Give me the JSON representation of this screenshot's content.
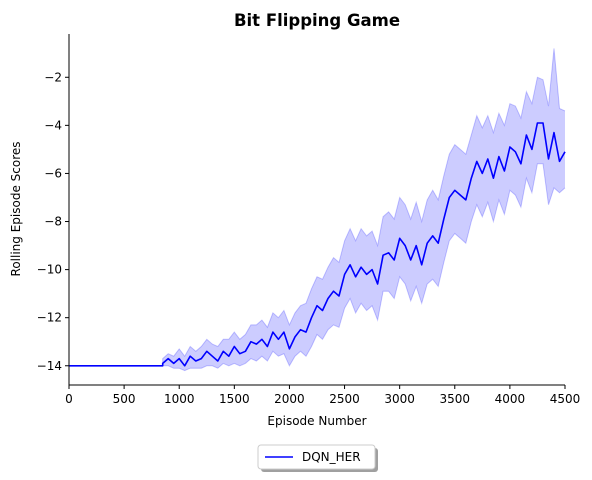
{
  "chart_data": {
    "type": "line",
    "title": "Bit Flipping Game",
    "xlabel": "Episode Number",
    "ylabel": "Rolling Episode Scores",
    "xlim": [
      0,
      4500
    ],
    "ylim": [
      -14.8,
      -0.2
    ],
    "xticks": [
      0,
      500,
      1000,
      1500,
      2000,
      2500,
      3000,
      3500,
      4000,
      4500
    ],
    "yticks": [
      -14,
      -12,
      -10,
      -8,
      -6,
      -4,
      -2
    ],
    "ytick_labels": [
      "−14",
      "−12",
      "−10",
      "−8",
      "−6",
      "−4",
      "−2"
    ],
    "grid": false,
    "legend_position": "below-center",
    "series": [
      {
        "name": "DQN_HER",
        "color": "#0000ff",
        "band_color": "#0000ff",
        "band_opacity": 0.2,
        "x": [
          0,
          850,
          850,
          900,
          950,
          1000,
          1050,
          1100,
          1150,
          1200,
          1250,
          1300,
          1350,
          1400,
          1450,
          1500,
          1550,
          1600,
          1650,
          1700,
          1750,
          1800,
          1850,
          1900,
          1950,
          2000,
          2050,
          2100,
          2150,
          2200,
          2250,
          2300,
          2350,
          2400,
          2450,
          2500,
          2550,
          2600,
          2650,
          2700,
          2750,
          2800,
          2850,
          2900,
          2950,
          3000,
          3050,
          3100,
          3150,
          3200,
          3250,
          3300,
          3350,
          3400,
          3450,
          3500,
          3550,
          3600,
          3650,
          3700,
          3750,
          3800,
          3850,
          3900,
          3950,
          4000,
          4050,
          4100,
          4150,
          4200,
          4250,
          4300,
          4350,
          4400,
          4450,
          4500
        ],
        "mean": [
          -14,
          -14,
          -13.9,
          -13.7,
          -13.9,
          -13.7,
          -14.0,
          -13.6,
          -13.8,
          -13.7,
          -13.4,
          -13.6,
          -13.8,
          -13.4,
          -13.6,
          -13.2,
          -13.5,
          -13.4,
          -13.0,
          -13.1,
          -12.9,
          -13.2,
          -12.6,
          -12.9,
          -12.6,
          -13.3,
          -12.8,
          -12.5,
          -12.6,
          -12.0,
          -11.5,
          -11.7,
          -11.2,
          -10.9,
          -11.1,
          -10.2,
          -9.8,
          -10.3,
          -9.9,
          -10.2,
          -10.0,
          -10.6,
          -9.4,
          -9.3,
          -9.6,
          -8.7,
          -9.0,
          -9.6,
          -9.0,
          -9.8,
          -8.9,
          -8.6,
          -8.9,
          -7.9,
          -7.0,
          -6.7,
          -6.9,
          -7.1,
          -6.2,
          -5.5,
          -6.0,
          -5.4,
          -6.2,
          -5.3,
          -5.9,
          -4.9,
          -5.1,
          -5.6,
          -4.4,
          -5.0,
          -3.9,
          -3.9,
          -5.4,
          -4.3,
          -5.5,
          -5.1
        ],
        "upper": [
          -14,
          -14,
          -13.7,
          -13.5,
          -13.6,
          -13.3,
          -13.6,
          -13.2,
          -13.4,
          -13.2,
          -12.9,
          -13.1,
          -13.2,
          -12.9,
          -12.9,
          -12.6,
          -12.9,
          -12.7,
          -12.3,
          -12.3,
          -12.1,
          -12.4,
          -11.8,
          -12.0,
          -11.7,
          -12.3,
          -11.8,
          -11.5,
          -11.4,
          -10.8,
          -10.3,
          -10.4,
          -9.9,
          -9.5,
          -9.7,
          -8.8,
          -8.3,
          -8.8,
          -8.3,
          -8.6,
          -8.4,
          -9.0,
          -7.8,
          -7.6,
          -7.9,
          -7.0,
          -7.3,
          -7.9,
          -7.2,
          -8.0,
          -7.1,
          -6.7,
          -7.1,
          -6.1,
          -5.2,
          -4.8,
          -5.0,
          -5.2,
          -4.4,
          -3.6,
          -4.1,
          -3.6,
          -4.3,
          -3.5,
          -4.0,
          -3.1,
          -3.2,
          -3.7,
          -2.6,
          -3.1,
          -2.0,
          -2.1,
          -3.2,
          -0.8,
          -3.3,
          -3.4
        ],
        "lower": [
          -14,
          -14,
          -14.0,
          -14.0,
          -14.1,
          -14.1,
          -14.2,
          -14.1,
          -14.1,
          -14.1,
          -14.0,
          -14.0,
          -14.1,
          -13.9,
          -14.0,
          -13.9,
          -14.0,
          -13.9,
          -13.7,
          -13.8,
          -13.6,
          -13.8,
          -13.4,
          -13.6,
          -13.5,
          -14.0,
          -13.6,
          -13.4,
          -13.6,
          -13.2,
          -12.7,
          -12.9,
          -12.5,
          -12.3,
          -12.4,
          -11.6,
          -11.2,
          -11.8,
          -11.4,
          -11.7,
          -11.5,
          -12.1,
          -10.9,
          -10.9,
          -11.2,
          -10.3,
          -10.6,
          -11.3,
          -10.7,
          -11.4,
          -10.6,
          -10.4,
          -10.7,
          -9.7,
          -8.8,
          -8.5,
          -8.7,
          -8.9,
          -8.0,
          -7.3,
          -7.8,
          -7.2,
          -8.0,
          -7.1,
          -7.7,
          -6.7,
          -6.9,
          -7.4,
          -6.2,
          -6.8,
          -5.6,
          -5.6,
          -7.3,
          -6.6,
          -6.8,
          -6.6
        ]
      }
    ]
  }
}
